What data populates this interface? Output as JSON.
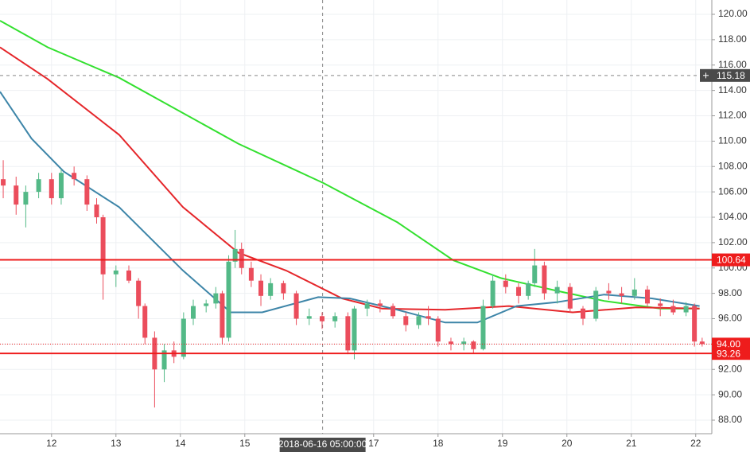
{
  "chart_data": {
    "type": "candlestick",
    "xlim": [
      11.2,
      22.25
    ],
    "ylim": [
      88,
      120
    ],
    "xticks": [
      12,
      13,
      14,
      15,
      17,
      18,
      19,
      20,
      21,
      22
    ],
    "yticks": [
      {
        "value": 88,
        "label": "88.00"
      },
      {
        "value": 90,
        "label": "90.00"
      },
      {
        "value": 92,
        "label": "92.00"
      },
      {
        "value": 94,
        "label": "94.00"
      },
      {
        "value": 96,
        "label": "96.00"
      },
      {
        "value": 98,
        "label": "98.00"
      },
      {
        "value": 100,
        "label": "100.00"
      },
      {
        "value": 102,
        "label": "102.00"
      },
      {
        "value": 104,
        "label": "104.00"
      },
      {
        "value": 106,
        "label": "106.00"
      },
      {
        "value": 108,
        "label": "108.00"
      },
      {
        "value": 110,
        "label": "110.00"
      },
      {
        "value": 112,
        "label": "112.00"
      },
      {
        "value": 114,
        "label": "114.00"
      },
      {
        "value": 116,
        "label": "116.00"
      },
      {
        "value": 118,
        "label": "118.00"
      },
      {
        "value": 120,
        "label": "120.00"
      }
    ],
    "grid": true,
    "up_color": "#53b987",
    "down_color": "#eb4d5c",
    "candles": {
      "x": [
        11.25,
        11.45,
        11.6,
        11.8,
        12.0,
        12.15,
        12.35,
        12.55,
        12.7,
        12.8,
        13.0,
        13.2,
        13.35,
        13.45,
        13.6,
        13.75,
        13.9,
        14.05,
        14.2,
        14.4,
        14.55,
        14.65,
        14.75,
        14.85,
        14.95,
        15.1,
        15.25,
        15.4,
        15.6,
        15.8,
        16.0,
        16.2,
        16.4,
        16.6,
        16.7,
        16.9,
        17.1,
        17.3,
        17.5,
        17.7,
        17.85,
        18.0,
        18.2,
        18.4,
        18.55,
        18.7,
        18.85,
        19.05,
        19.25,
        19.4,
        19.5,
        19.65,
        19.85,
        20.05,
        20.25,
        20.45,
        20.65,
        20.85,
        21.05,
        21.25,
        21.45,
        21.65,
        21.85,
        21.98,
        22.1
      ],
      "open": [
        107,
        106.5,
        105,
        106,
        107,
        105.5,
        107.5,
        107,
        105,
        104,
        99.5,
        99.8,
        99,
        97,
        94.5,
        92,
        93.5,
        93,
        96,
        97,
        97.2,
        98,
        94.5,
        100.5,
        101.5,
        100,
        99,
        97.8,
        98.8,
        98,
        96,
        96.2,
        95.8,
        96.2,
        93.5,
        96.8,
        97.2,
        97,
        96.2,
        95.5,
        96.2,
        96,
        94.2,
        94,
        94.2,
        93.6,
        97,
        99,
        98.5,
        97.8,
        98.8,
        100.2,
        98,
        98.5,
        96.8,
        96,
        98.2,
        98,
        97.8,
        98.3,
        97.2,
        97,
        96.5,
        97,
        94.2
      ],
      "high": [
        108.5,
        107.2,
        106.5,
        107.5,
        107.5,
        107.8,
        108,
        107.3,
        105.5,
        104.2,
        100.2,
        100.2,
        99.2,
        97.2,
        95,
        94,
        94.2,
        96.5,
        97.5,
        97.5,
        98.5,
        98.2,
        101,
        103,
        102,
        100.5,
        99.5,
        99.2,
        99,
        98.2,
        96.8,
        96.5,
        96.5,
        96.5,
        97,
        97.5,
        97.5,
        97.2,
        96.5,
        96.5,
        97,
        96.2,
        94.5,
        94.5,
        94.3,
        97.5,
        99.5,
        99.5,
        98.8,
        99,
        101.5,
        100.5,
        99,
        98.8,
        97,
        98.5,
        98.8,
        98.5,
        99.2,
        98.6,
        97.6,
        97.5,
        97.3,
        97.2,
        94.5
      ],
      "low": [
        105.5,
        104.2,
        103.2,
        105.5,
        105,
        105,
        106.5,
        104.5,
        103.5,
        97.5,
        98.5,
        98.8,
        96,
        94,
        89,
        91,
        92.5,
        92.8,
        95.5,
        96.5,
        96.8,
        94,
        94.2,
        100,
        99.5,
        98.5,
        97,
        97.5,
        97.5,
        95.5,
        95.5,
        95.2,
        95.3,
        93.2,
        92.8,
        96.2,
        96.5,
        96,
        95,
        95.2,
        95.5,
        93.8,
        93.5,
        93.5,
        93.3,
        93.5,
        96.8,
        98,
        97.2,
        97.5,
        98.5,
        97.5,
        97.2,
        96.5,
        95.5,
        95.8,
        97.5,
        97.2,
        97.5,
        97,
        96.2,
        96.3,
        96.2,
        93.8,
        93.8
      ],
      "close": [
        106.5,
        105,
        106,
        107,
        105.5,
        107.5,
        107,
        105,
        104,
        99.5,
        99.8,
        99,
        97,
        94.5,
        92,
        93.5,
        93,
        96,
        97,
        97.2,
        98,
        94.5,
        100.5,
        101.5,
        100,
        99,
        97.8,
        98.8,
        98,
        96,
        96.2,
        95.8,
        96.2,
        93.5,
        96.8,
        97.2,
        97,
        96.2,
        95.5,
        96.2,
        96,
        94.2,
        94,
        94.2,
        93.6,
        97,
        99,
        98.5,
        97.8,
        98.8,
        100.2,
        98,
        98.5,
        96.8,
        96,
        98.2,
        98,
        97.8,
        98.3,
        97.2,
        97,
        96.5,
        97,
        94.2,
        94
      ]
    },
    "series": [
      {
        "color": "#33e02f",
        "x": [
          11.2,
          11.94,
          13.05,
          14.9,
          16.22,
          17.37,
          18.24,
          18.98,
          19.84,
          20.58,
          21.45,
          22.06
        ],
        "values": [
          119.5,
          117.4,
          115,
          109.8,
          106.7,
          103.6,
          100.6,
          99.2,
          98.2,
          97.4,
          96.8,
          96.8
        ]
      },
      {
        "color": "#e5262a",
        "x": [
          11.2,
          11.94,
          13.05,
          14.04,
          14.9,
          15.64,
          16.51,
          17.13,
          18.11,
          19.1,
          20.09,
          21.08,
          22.06
        ],
        "values": [
          117.4,
          114.9,
          110.5,
          104.8,
          101.2,
          99.8,
          97.6,
          96.8,
          96.7,
          97,
          96.5,
          96.9,
          96.8
        ]
      },
      {
        "color": "#3d85a8",
        "x": [
          11.2,
          11.69,
          12.19,
          13.05,
          14.04,
          14.78,
          15.27,
          16.14,
          16.63,
          17.37,
          18.11,
          18.61,
          19.22,
          19.84,
          20.58,
          21.32,
          22.06
        ],
        "values": [
          113.9,
          110.2,
          107.6,
          104.8,
          99.8,
          96.5,
          96.5,
          97.7,
          97.6,
          96.7,
          95.7,
          95.7,
          97,
          97.3,
          97.9,
          97.6,
          97
        ]
      }
    ],
    "levels": [
      {
        "value": 115.18,
        "label": "115.18",
        "color": "#4a4a4a",
        "style": "crosshair"
      },
      {
        "value": 100.64,
        "label": "100.64",
        "color": "#ee1c1c",
        "style": "solid"
      },
      {
        "value": 94,
        "label": "94.00",
        "color": "#ee1c1c",
        "style": "dotted"
      },
      {
        "value": 93.26,
        "label": "93.26",
        "color": "#ee1c1c",
        "style": "solid"
      }
    ],
    "crosshair": {
      "value": 16.208,
      "label": "2018-06-16 05:00:00"
    }
  }
}
